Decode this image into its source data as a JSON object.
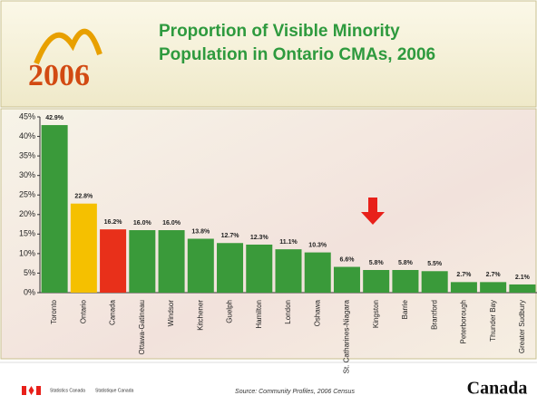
{
  "chart_data": {
    "type": "bar",
    "title": "Proportion of Visible Minority Population in Ontario CMAs, 2006",
    "categories": [
      "Toronto",
      "Ontario",
      "Canada",
      "Ottawa-Gatineau",
      "Windsor",
      "Kitchener",
      "Guelph",
      "Hamilton",
      "London",
      "Oshawa",
      "St. Catharines-Niagara",
      "Kingston",
      "Barrie",
      "Brantford",
      "Peterborough",
      "Thunder Bay",
      "Greater Sudbury"
    ],
    "values": [
      42.9,
      22.8,
      16.2,
      16.0,
      16.0,
      13.8,
      12.7,
      12.3,
      11.1,
      10.3,
      6.6,
      5.8,
      5.8,
      5.5,
      2.7,
      2.7,
      2.1
    ],
    "value_labels": [
      "42.9%",
      "22.8%",
      "16.2%",
      "16.0%",
      "16.0%",
      "13.8%",
      "12.7%",
      "12.3%",
      "11.1%",
      "10.3%",
      "6.6%",
      "5.8%",
      "5.8%",
      "5.5%",
      "2.7%",
      "2.7%",
      "2.1%"
    ],
    "colors": [
      "#3a9a3a",
      "#f5c000",
      "#e8301a",
      "#3a9a3a",
      "#3a9a3a",
      "#3a9a3a",
      "#3a9a3a",
      "#3a9a3a",
      "#3a9a3a",
      "#3a9a3a",
      "#3a9a3a",
      "#3a9a3a",
      "#3a9a3a",
      "#3a9a3a",
      "#3a9a3a",
      "#3a9a3a",
      "#3a9a3a"
    ],
    "ylim": [
      0,
      45
    ],
    "yticks": [
      {
        "value": 0,
        "label": "0%"
      },
      {
        "value": 5,
        "label": "5%"
      },
      {
        "value": 10,
        "label": "10%"
      },
      {
        "value": 15,
        "label": "15%"
      },
      {
        "value": 20,
        "label": "20%"
      },
      {
        "value": 25,
        "label": "25%"
      },
      {
        "value": 30,
        "label": "30%"
      },
      {
        "value": 35,
        "label": "35%"
      },
      {
        "value": 40,
        "label": "40%"
      },
      {
        "value": 45,
        "label": "45%"
      }
    ],
    "source": "Source: Community Profiles, 2006 Census"
  },
  "slide": {
    "logo_year": "2006",
    "agency_en": "Statistics Canada",
    "agency_fr": "Statistique Canada",
    "wordmark": "Canada"
  }
}
